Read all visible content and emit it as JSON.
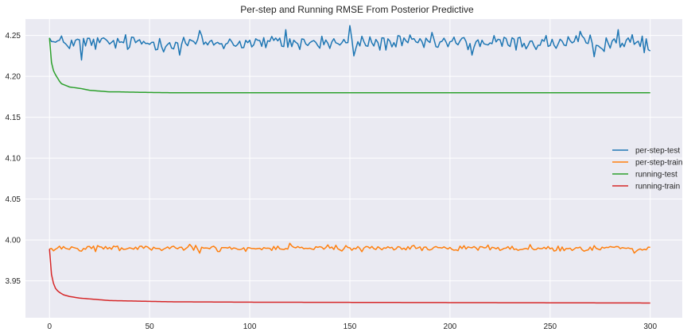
{
  "chart_data": {
    "type": "line",
    "title": "Per-step and Running RMSE From Posterior Predictive",
    "xlabel": "",
    "ylabel": "",
    "xlim": [
      -12,
      316
    ],
    "ylim": [
      3.905,
      4.27
    ],
    "x_ticks": [
      0,
      50,
      100,
      150,
      200,
      250,
      300
    ],
    "x_tick_labels": [
      "0",
      "50",
      "100",
      "150",
      "200",
      "250",
      "300"
    ],
    "y_ticks": [
      3.95,
      4.0,
      4.05,
      4.1,
      4.15,
      4.2,
      4.25
    ],
    "y_tick_labels": [
      "3.95",
      "4.00",
      "4.05",
      "4.10",
      "4.15",
      "4.20",
      "4.25"
    ],
    "grid": true,
    "legend_position": "center-right",
    "x": {
      "start": 0,
      "end": 300,
      "step": 1
    },
    "series": [
      {
        "name": "per-step-test",
        "color": "#1f77b4",
        "mean": 4.241,
        "noise": 0.007,
        "first": 4.247,
        "last": 4.231,
        "points": [
          [
            16,
            4.22
          ],
          [
            65,
            4.226
          ],
          [
            75,
            4.256
          ],
          [
            118,
            4.257
          ],
          [
            150,
            4.262
          ],
          [
            152,
            4.225
          ],
          [
            211,
            4.226
          ],
          [
            265,
            4.255
          ],
          [
            272,
            4.224
          ],
          [
            284,
            4.257
          ],
          [
            297,
            4.229
          ]
        ]
      },
      {
        "name": "per-step-train",
        "color": "#ff7f0e",
        "mean": 3.99,
        "noise": 0.0025,
        "first": 3.989,
        "last": 3.991,
        "points": [
          [
            75,
            3.984
          ],
          [
            120,
            3.996
          ],
          [
            292,
            3.984
          ]
        ]
      },
      {
        "name": "running-test",
        "color": "#2ca02c",
        "curve": [
          [
            0,
            4.247
          ],
          [
            1,
            4.217
          ],
          [
            2,
            4.207
          ],
          [
            3,
            4.202
          ],
          [
            4,
            4.198
          ],
          [
            5,
            4.194
          ],
          [
            6,
            4.191
          ],
          [
            8,
            4.189
          ],
          [
            10,
            4.187
          ],
          [
            13,
            4.186
          ],
          [
            16,
            4.185
          ],
          [
            20,
            4.183
          ],
          [
            25,
            4.182
          ],
          [
            30,
            4.181
          ],
          [
            35,
            4.181
          ],
          [
            45,
            4.1805
          ],
          [
            60,
            4.18
          ],
          [
            300,
            4.18
          ]
        ]
      },
      {
        "name": "running-train",
        "color": "#d62728",
        "curve": [
          [
            0,
            3.989
          ],
          [
            1,
            3.958
          ],
          [
            2,
            3.947
          ],
          [
            3,
            3.941
          ],
          [
            4,
            3.938
          ],
          [
            5,
            3.936
          ],
          [
            7,
            3.933
          ],
          [
            10,
            3.931
          ],
          [
            15,
            3.929
          ],
          [
            20,
            3.928
          ],
          [
            30,
            3.926
          ],
          [
            40,
            3.9255
          ],
          [
            60,
            3.9245
          ],
          [
            100,
            3.924
          ],
          [
            300,
            3.923
          ]
        ]
      }
    ]
  }
}
